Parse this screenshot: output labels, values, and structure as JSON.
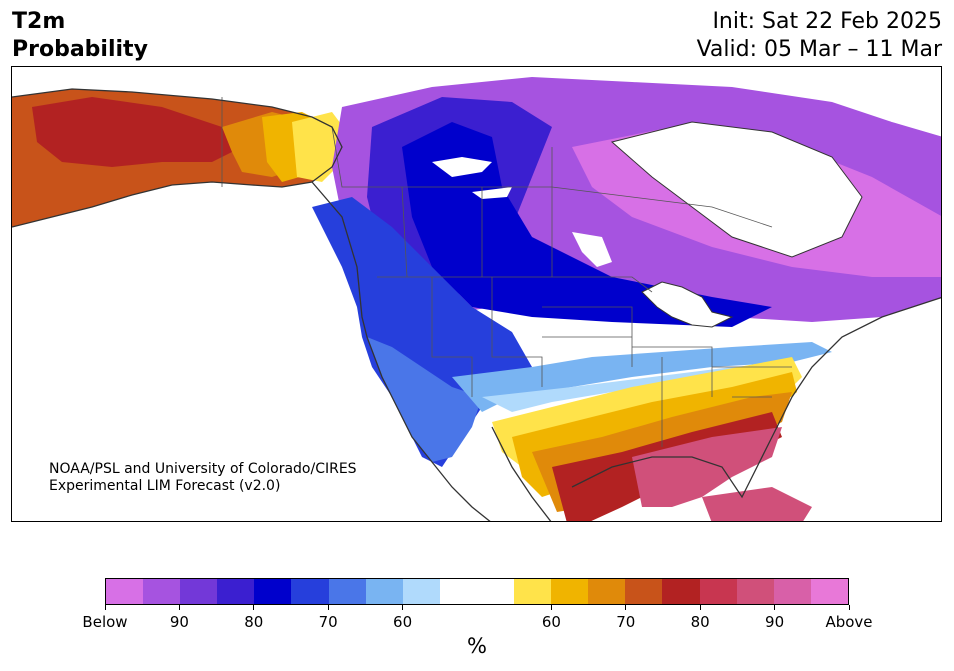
{
  "header": {
    "title_line1": "T2m",
    "title_line2": "Probability",
    "init_text": "Init: Sat 22 Feb 2025",
    "valid_text": "Valid: 05 Mar – 11 Mar"
  },
  "map": {
    "credit_line1": "NOAA/PSL and University of Colorado/CIRES",
    "credit_line2": "Experimental LIM Forecast (v2.0)"
  },
  "colorbar": {
    "colors": [
      "#d770e6",
      "#a653e0",
      "#7338d8",
      "#3b1fd0",
      "#0000cc",
      "#263fdc",
      "#4a76e8",
      "#79b4f2",
      "#b0dafc",
      "#ffffff",
      "#ffffff",
      "#ffe34a",
      "#f0b400",
      "#e08a0a",
      "#c8531a",
      "#b22222",
      "#c83650",
      "#d0507a",
      "#d860a8",
      "#e878d8"
    ],
    "labels": [
      "Below",
      "90",
      "80",
      "70",
      "60",
      "60",
      "70",
      "80",
      "90",
      "Above"
    ],
    "units": "%"
  }
}
